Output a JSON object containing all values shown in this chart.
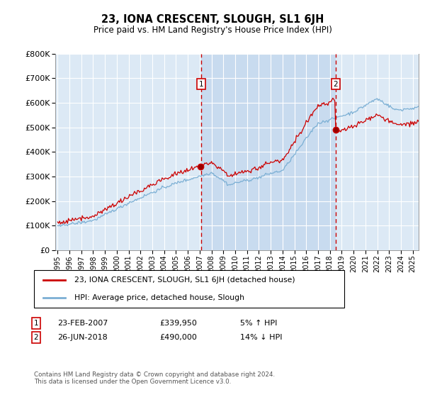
{
  "title": "23, IONA CRESCENT, SLOUGH, SL1 6JH",
  "subtitle": "Price paid vs. HM Land Registry's House Price Index (HPI)",
  "plot_bg_color": "#dce9f5",
  "hpi_color": "#7bafd4",
  "price_color": "#cc0000",
  "vline_color": "#cc0000",
  "shade_color": "#c5d9ee",
  "annotation1": {
    "x_year": 2007.12,
    "label": "1",
    "price": 339950,
    "date": "23-FEB-2007",
    "hpi_pct": "5% ↑ HPI"
  },
  "annotation2": {
    "x_year": 2018.48,
    "label": "2",
    "price": 490000,
    "date": "26-JUN-2018",
    "hpi_pct": "14% ↓ HPI"
  },
  "legend_line1": "23, IONA CRESCENT, SLOUGH, SL1 6JH (detached house)",
  "legend_line2": "HPI: Average price, detached house, Slough",
  "footer": "Contains HM Land Registry data © Crown copyright and database right 2024.\nThis data is licensed under the Open Government Licence v3.0.",
  "ylim": [
    0,
    800000
  ],
  "yticks": [
    0,
    100000,
    200000,
    300000,
    400000,
    500000,
    600000,
    700000,
    800000
  ],
  "xlim_start": 1994.8,
  "xlim_end": 2025.5,
  "xtick_years": [
    1995,
    1996,
    1997,
    1998,
    1999,
    2000,
    2001,
    2002,
    2003,
    2004,
    2005,
    2006,
    2007,
    2008,
    2009,
    2010,
    2011,
    2012,
    2013,
    2014,
    2015,
    2016,
    2017,
    2018,
    2019,
    2020,
    2021,
    2022,
    2023,
    2024,
    2025
  ]
}
